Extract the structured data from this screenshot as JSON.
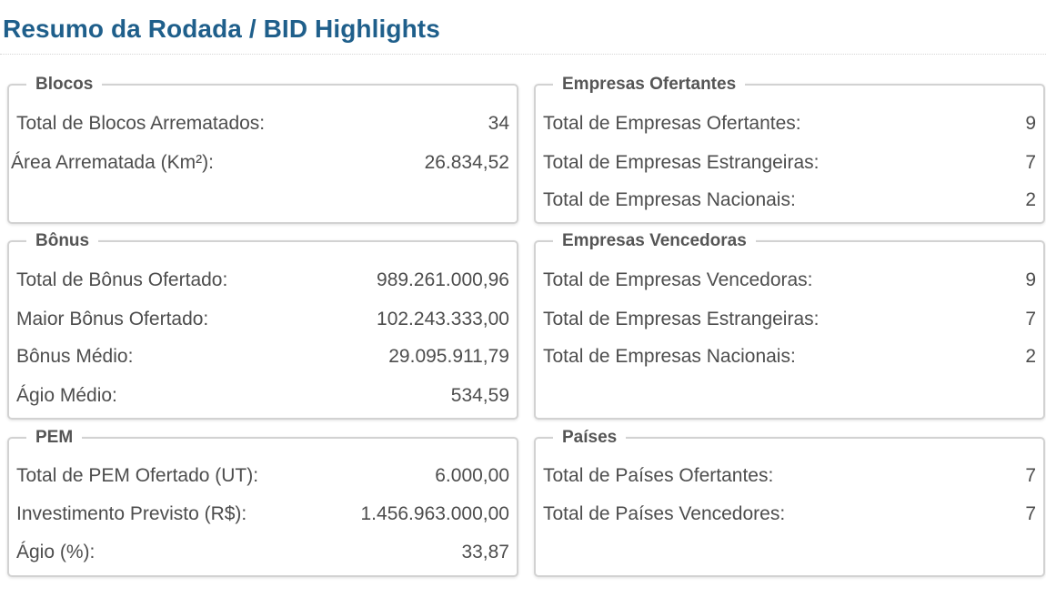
{
  "page": {
    "title": "Resumo da Rodada / BID Highlights"
  },
  "sections": {
    "blocos": {
      "title": "Blocos",
      "rows": [
        {
          "label": "Total de Blocos Arrematados:",
          "value": "34"
        },
        {
          "label": "Área Arrematada (Km²):",
          "value": "26.834,52"
        }
      ]
    },
    "empresas_ofertantes": {
      "title": "Empresas Ofertantes",
      "rows": [
        {
          "label": "Total de Empresas Ofertantes:",
          "value": "9"
        },
        {
          "label": "Total de Empresas Estrangeiras:",
          "value": "7"
        },
        {
          "label": "Total de Empresas Nacionais:",
          "value": "2"
        }
      ]
    },
    "bonus": {
      "title": "Bônus",
      "rows": [
        {
          "label": "Total de Bônus Ofertado:",
          "value": "989.261.000,96"
        },
        {
          "label": "Maior Bônus Ofertado:",
          "value": "102.243.333,00"
        },
        {
          "label": "Bônus Médio:",
          "value": "29.095.911,79"
        },
        {
          "label": "Ágio Médio:",
          "value": "534,59"
        }
      ]
    },
    "empresas_vencedoras": {
      "title": "Empresas Vencedoras",
      "rows": [
        {
          "label": "Total de Empresas Vencedoras:",
          "value": "9"
        },
        {
          "label": "Total de Empresas Estrangeiras:",
          "value": "7"
        },
        {
          "label": "Total de Empresas Nacionais:",
          "value": "2"
        }
      ]
    },
    "pem": {
      "title": "PEM",
      "rows": [
        {
          "label": "Total de PEM Ofertado (UT):",
          "value": "6.000,00"
        },
        {
          "label": "Investimento Previsto (R$):",
          "value": "1.456.963.000,00"
        },
        {
          "label": "Ágio (%):",
          "value": "33,87"
        }
      ]
    },
    "paises": {
      "title": "Países",
      "rows": [
        {
          "label": "Total de Países Ofertantes:",
          "value": "7"
        },
        {
          "label": "Total de Países Vencedores:",
          "value": "7"
        }
      ]
    }
  }
}
